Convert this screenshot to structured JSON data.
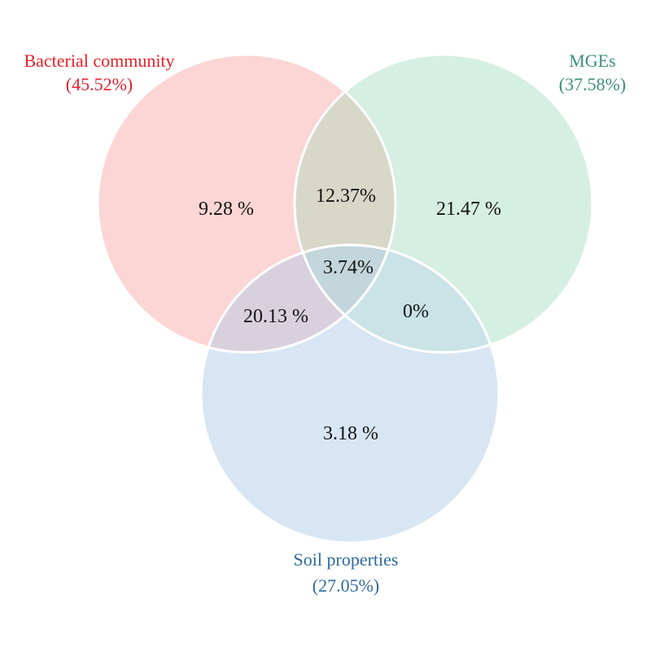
{
  "sets": [
    {
      "name": "Bacterial community",
      "percent": "(45.52%)",
      "fill": "#fcd5d5",
      "label_color": "#e8202a"
    },
    {
      "name": "MGEs",
      "percent": "(37.58%)",
      "fill": "#d6efe3",
      "label_color": "#3a8f78"
    },
    {
      "name": "Soil properties",
      "percent": "(27.05%)",
      "fill": "#d8e6f3",
      "label_color": "#2e6a9e"
    }
  ],
  "regions": {
    "bacterial_only": "9.28 %",
    "bacterial_mges": "12.37%",
    "mges_only": "21.47 %",
    "all_three": "3.74%",
    "bacterial_soil": "20.13 %",
    "mges_soil": "0%",
    "soil_only": "3.18 %"
  },
  "colors": {
    "outline": "#ffffff",
    "bacterial_mges_overlap": "#d7d8c8",
    "bacterial_soil_overlap": "#d9d0dd",
    "mges_soil_overlap": "#c9e3e6",
    "center_overlap": "#c3d6db"
  }
}
